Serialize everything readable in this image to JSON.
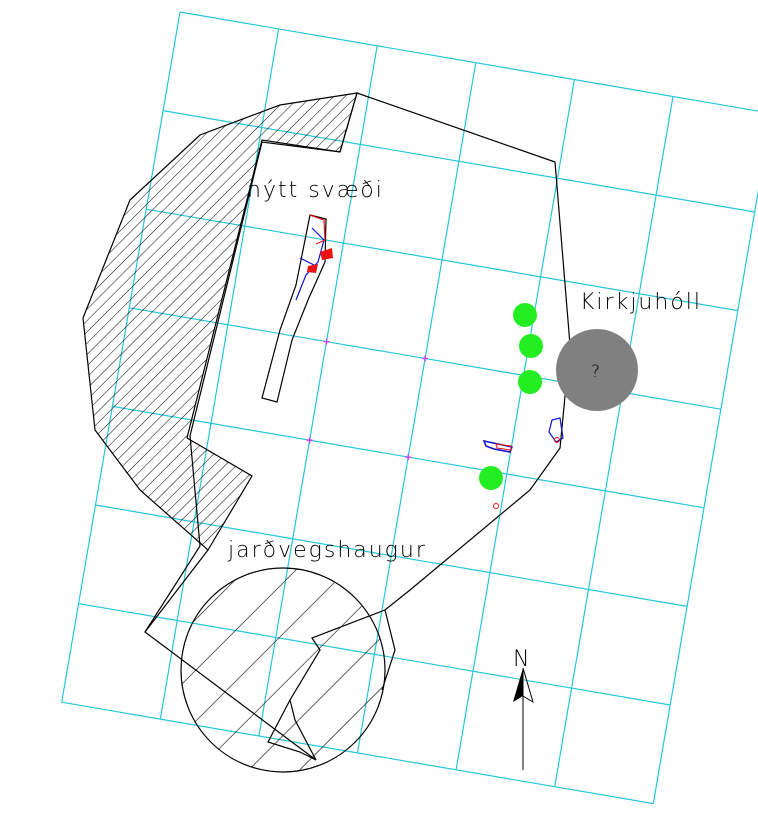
{
  "labels": {
    "new_area": "nýtt svæði",
    "church_hill": "Kirkjuhóll",
    "soil_heap": "jarðvegshaugur",
    "unknown_mark": "?",
    "north": "N"
  },
  "colors": {
    "background": "#ffffff",
    "grid": "#26c6da",
    "outline": "#000000",
    "hatch": "#000000",
    "tree": "#22ee22",
    "hill": "#808080",
    "grid_marker": "#cc33ff",
    "trench_red": "#ee1111",
    "trench_blue": "#1111cc"
  },
  "features": [
    {
      "name": "excavation-boundary",
      "kind": "polygon"
    },
    {
      "name": "hatched-zone",
      "kind": "hatched-polygon"
    },
    {
      "name": "soil-heap",
      "kind": "hatched-circle"
    },
    {
      "name": "church-hill",
      "kind": "circle"
    },
    {
      "name": "trees",
      "kind": "circles",
      "count": 4
    },
    {
      "name": "trench",
      "kind": "polygon"
    },
    {
      "name": "north-arrow",
      "kind": "arrow"
    }
  ]
}
